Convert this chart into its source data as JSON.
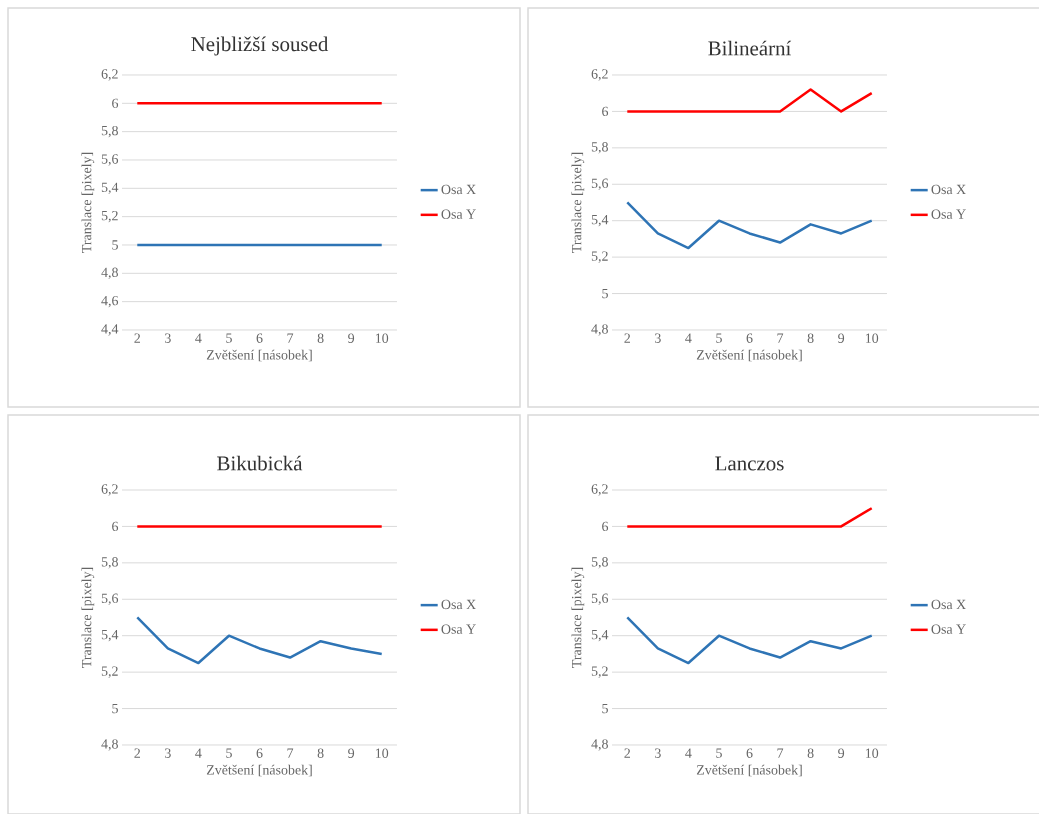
{
  "chart_data": [
    {
      "type": "line",
      "title": "Nejbližší soused",
      "xlabel": "Zvětšení [násobek]",
      "ylabel": "Translace [pixely]",
      "categories": [
        "2",
        "3",
        "4",
        "5",
        "6",
        "7",
        "8",
        "9",
        "10"
      ],
      "series": [
        {
          "name": "Osa X",
          "color": "#2e74b5",
          "values": [
            5,
            5,
            5,
            5,
            5,
            5,
            5,
            5,
            5
          ]
        },
        {
          "name": "Osa Y",
          "color": "#ff0000",
          "values": [
            6,
            6,
            6,
            6,
            6,
            6,
            6,
            6,
            6
          ]
        }
      ],
      "ylim": [
        4.4,
        6.2
      ],
      "yticks": [
        {
          "value": 4.4,
          "label": "4,4"
        },
        {
          "value": 4.6,
          "label": "4,6"
        },
        {
          "value": 4.8,
          "label": "4,8"
        },
        5,
        {
          "value": 5.2,
          "label": "5,2"
        },
        {
          "value": 5.4,
          "label": "5,4"
        },
        {
          "value": 5.6,
          "label": "5,6"
        },
        {
          "value": 5.8,
          "label": "5,8"
        },
        6,
        {
          "value": 6.2,
          "label": "6,2"
        }
      ],
      "grid": "y",
      "legend": "right"
    },
    {
      "type": "line",
      "title": "Bilineární",
      "xlabel": "Zvětšení [násobek]",
      "ylabel": "Translace [pixely]",
      "categories": [
        "2",
        "3",
        "4",
        "5",
        "6",
        "7",
        "8",
        "9",
        "10"
      ],
      "series": [
        {
          "name": "Osa X",
          "color": "#2e74b5",
          "values": [
            5.5,
            5.33,
            5.25,
            5.4,
            5.33,
            5.28,
            5.38,
            5.33,
            5.4
          ]
        },
        {
          "name": "Osa Y",
          "color": "#ff0000",
          "values": [
            6,
            6,
            6,
            6,
            6,
            6,
            6.12,
            6,
            6.1
          ]
        }
      ],
      "ylim": [
        4.8,
        6.2
      ],
      "yticks": [
        {
          "value": 4.8,
          "label": "4,8"
        },
        5,
        {
          "value": 5.2,
          "label": "5,2"
        },
        {
          "value": 5.4,
          "label": "5,4"
        },
        {
          "value": 5.6,
          "label": "5,6"
        },
        {
          "value": 5.8,
          "label": "5,8"
        },
        6,
        {
          "value": 6.2,
          "label": "6,2"
        }
      ],
      "grid": "y",
      "legend": "right"
    },
    {
      "type": "line",
      "title": "Bikubická",
      "xlabel": "Zvětšení [násobek]",
      "ylabel": "Translace [pixely]",
      "categories": [
        "2",
        "3",
        "4",
        "5",
        "6",
        "7",
        "8",
        "9",
        "10"
      ],
      "series": [
        {
          "name": "Osa X",
          "color": "#2e74b5",
          "values": [
            5.5,
            5.33,
            5.25,
            5.4,
            5.33,
            5.28,
            5.37,
            5.33,
            5.3
          ]
        },
        {
          "name": "Osa Y",
          "color": "#ff0000",
          "values": [
            6,
            6,
            6,
            6,
            6,
            6,
            6,
            6,
            6
          ]
        }
      ],
      "ylim": [
        4.8,
        6.2
      ],
      "yticks": [
        {
          "value": 4.8,
          "label": "4,8"
        },
        5,
        {
          "value": 5.2,
          "label": "5,2"
        },
        {
          "value": 5.4,
          "label": "5,4"
        },
        {
          "value": 5.6,
          "label": "5,6"
        },
        {
          "value": 5.8,
          "label": "5,8"
        },
        6,
        {
          "value": 6.2,
          "label": "6,2"
        }
      ],
      "grid": "y",
      "legend": "right"
    },
    {
      "type": "line",
      "title": "Lanczos",
      "xlabel": "Zvětšení [násobek]",
      "ylabel": "Translace [pixely]",
      "categories": [
        "2",
        "3",
        "4",
        "5",
        "6",
        "7",
        "8",
        "9",
        "10"
      ],
      "series": [
        {
          "name": "Osa X",
          "color": "#2e74b5",
          "values": [
            5.5,
            5.33,
            5.25,
            5.4,
            5.33,
            5.28,
            5.37,
            5.33,
            5.4
          ]
        },
        {
          "name": "Osa Y",
          "color": "#ff0000",
          "values": [
            6,
            6,
            6,
            6,
            6,
            6,
            6,
            6,
            6.1
          ]
        }
      ],
      "ylim": [
        4.8,
        6.2
      ],
      "yticks": [
        {
          "value": 4.8,
          "label": "4,8"
        },
        5,
        {
          "value": 5.2,
          "label": "5,2"
        },
        {
          "value": 5.4,
          "label": "5,4"
        },
        {
          "value": 5.6,
          "label": "5,6"
        },
        {
          "value": 5.8,
          "label": "5,8"
        },
        6,
        {
          "value": 6.2,
          "label": "6,2"
        }
      ],
      "grid": "y",
      "legend": "right"
    }
  ]
}
